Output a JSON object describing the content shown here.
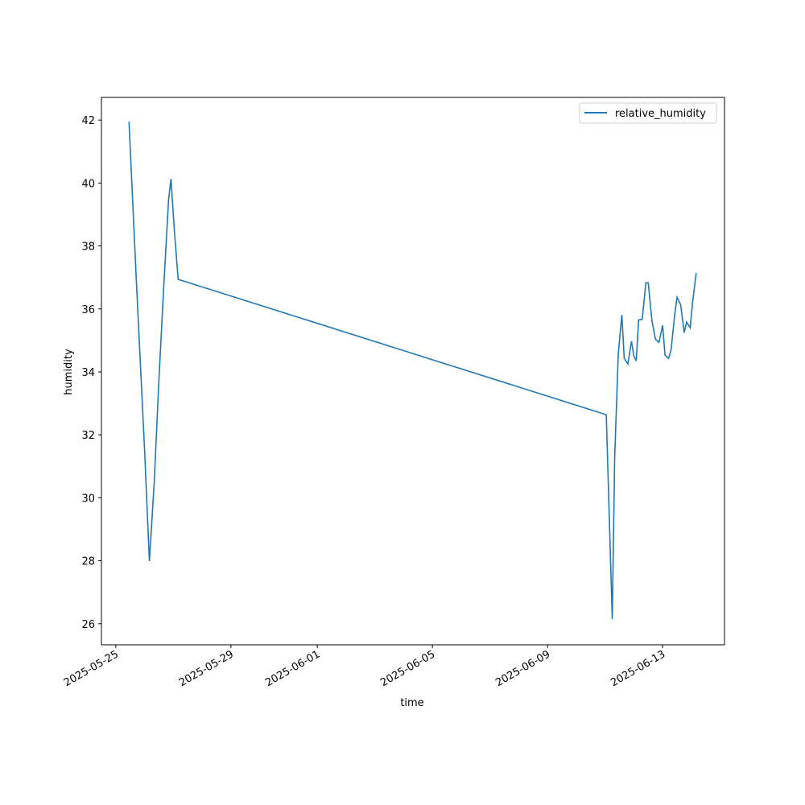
{
  "chart_data": {
    "type": "line",
    "x_label": "time",
    "y_label": "humidity",
    "x": [
      "2025-05-25T11:00",
      "2025-05-25T17:00",
      "2025-05-26T00:00",
      "2025-05-26T04:00",
      "2025-05-26T08:00",
      "2025-05-26T12:00",
      "2025-05-26T16:00",
      "2025-05-26T20:00",
      "2025-05-26T22:00",
      "2025-05-27T01:00",
      "2025-05-27T04:00",
      "2025-06-11T01:00",
      "2025-06-11T06:00",
      "2025-06-11T08:00",
      "2025-06-11T11:00",
      "2025-06-11T14:00",
      "2025-06-11T16:00",
      "2025-06-11T19:00",
      "2025-06-11T22:00",
      "2025-06-12T00:00",
      "2025-06-12T02:00",
      "2025-06-12T04:00",
      "2025-06-12T07:00",
      "2025-06-12T10:00",
      "2025-06-12T12:00",
      "2025-06-12T15:00",
      "2025-06-12T18:00",
      "2025-06-12T21:00",
      "2025-06-13T00:00",
      "2025-06-13T02:00",
      "2025-06-13T05:00",
      "2025-06-13T07:00",
      "2025-06-13T10:00",
      "2025-06-13T12:00",
      "2025-06-13T15:00",
      "2025-06-13T18:00",
      "2025-06-13T20:00",
      "2025-06-13T23:00",
      "2025-06-14T01:00",
      "2025-06-14T04:00"
    ],
    "series": [
      {
        "name": "relative_humidity",
        "color": "#1f77b4",
        "values": [
          41.95,
          36.99,
          31.5,
          27.99,
          30.47,
          33.8,
          36.74,
          39.47,
          40.13,
          38.4,
          36.94,
          32.64,
          26.15,
          31.24,
          34.56,
          35.81,
          34.43,
          34.25,
          34.97,
          34.51,
          34.35,
          35.65,
          35.67,
          36.83,
          36.83,
          35.65,
          35.04,
          34.94,
          35.48,
          34.53,
          34.43,
          34.69,
          35.79,
          36.37,
          36.14,
          35.25,
          35.58,
          35.4,
          36.22,
          37.14
        ]
      }
    ],
    "xlim": [
      "2025-05-24T12:00",
      "2025-06-15T03:36"
    ],
    "xticks": [
      "2025-05-25",
      "2025-05-29",
      "2025-06-01",
      "2025-06-05",
      "2025-06-09",
      "2025-06-13"
    ],
    "ylim": [
      25.33,
      42.72
    ],
    "yticks": [
      26,
      28,
      30,
      32,
      34,
      36,
      38,
      40,
      42
    ],
    "legend": "upper right",
    "grid": false
  }
}
